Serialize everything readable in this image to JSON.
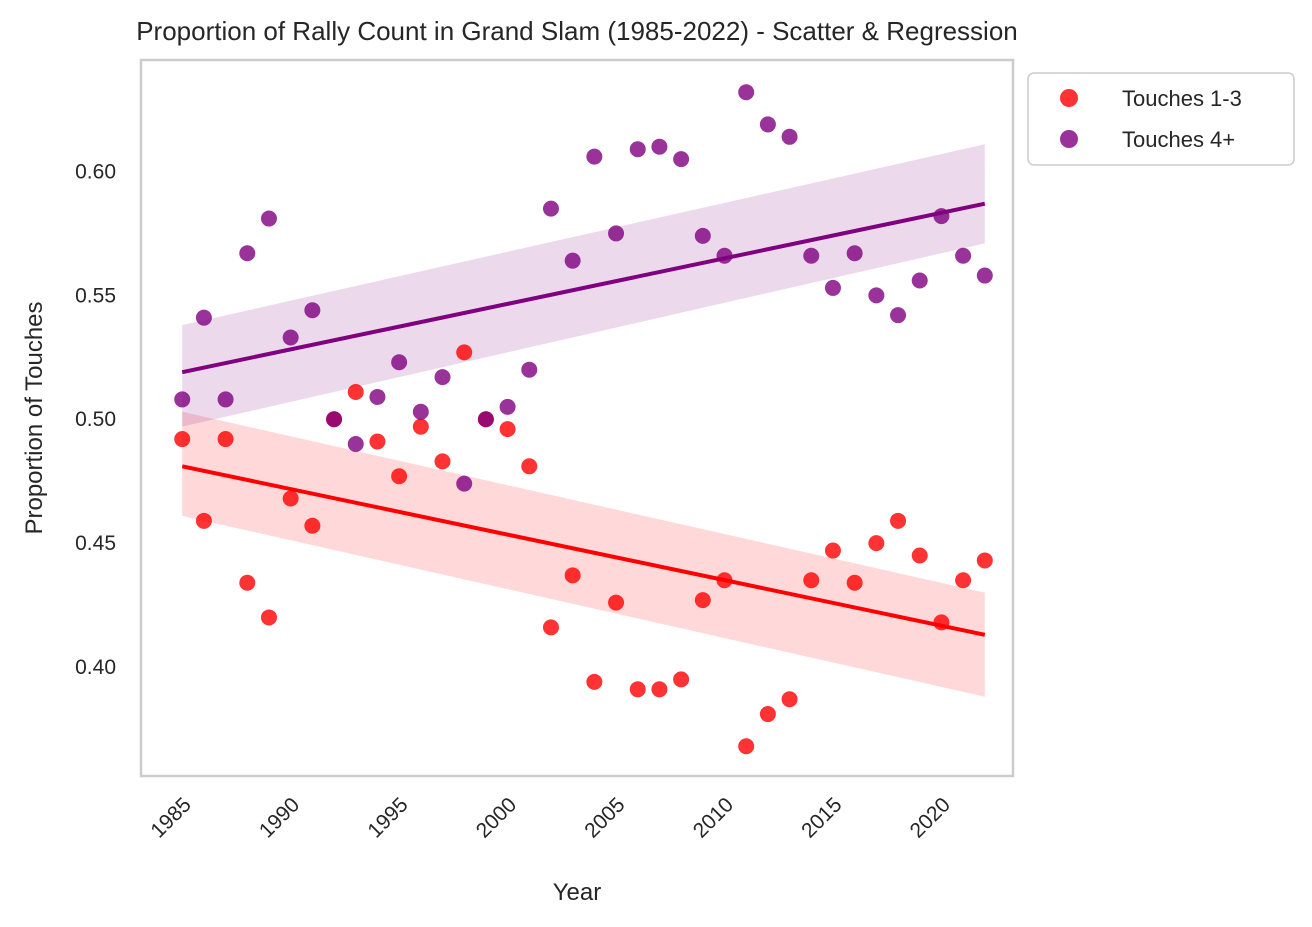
{
  "chart_data": {
    "type": "scatter",
    "title": "Proportion of Rally Count in Grand Slam (1985-2022) - Scatter & Regression",
    "xlabel": "Year",
    "ylabel": "Proportion of Touches",
    "xlim": [
      1983.1,
      2023.3
    ],
    "ylim": [
      0.356,
      0.645
    ],
    "xticks": [
      "1985",
      "1990",
      "1995",
      "2000",
      "2005",
      "2010",
      "2015",
      "2020"
    ],
    "yticks": [
      "0.40",
      "0.45",
      "0.50",
      "0.55",
      "0.60"
    ],
    "grid": false,
    "legend_position": "outside-top-right",
    "x": [
      1985,
      1986,
      1987,
      1988,
      1989,
      1990,
      1991,
      1992,
      1993,
      1994,
      1995,
      1996,
      1997,
      1998,
      1999,
      2000,
      2001,
      2002,
      2003,
      2004,
      2005,
      2006,
      2007,
      2008,
      2009,
      2010,
      2011,
      2012,
      2013,
      2014,
      2015,
      2016,
      2017,
      2018,
      2019,
      2020,
      2021,
      2022
    ],
    "series": [
      {
        "name": "Touches 1-3",
        "color": "#ff0000",
        "values": [
          0.492,
          0.459,
          0.492,
          0.434,
          0.42,
          0.468,
          0.457,
          0.5,
          0.511,
          0.491,
          0.477,
          0.497,
          0.483,
          0.527,
          0.5,
          0.496,
          0.481,
          0.416,
          0.437,
          0.394,
          0.426,
          0.391,
          0.391,
          0.395,
          0.427,
          0.435,
          0.368,
          0.381,
          0.387,
          0.435,
          0.447,
          0.434,
          0.45,
          0.459,
          0.445,
          0.418,
          0.435,
          0.443
        ],
        "regression": {
          "start": [
            1985,
            0.481
          ],
          "end": [
            2022,
            0.413
          ],
          "ci_start": [
            0.461,
            0.503
          ],
          "ci_end": [
            0.388,
            0.43
          ]
        }
      },
      {
        "name": "Touches 4+",
        "color": "#800080",
        "values": [
          0.508,
          0.541,
          0.508,
          0.567,
          0.581,
          0.533,
          0.544,
          0.5,
          0.49,
          0.509,
          0.523,
          0.503,
          0.517,
          0.474,
          0.5,
          0.505,
          0.52,
          0.585,
          0.564,
          0.606,
          0.575,
          0.609,
          0.61,
          0.605,
          0.574,
          0.566,
          0.632,
          0.619,
          0.614,
          0.566,
          0.553,
          0.567,
          0.55,
          0.542,
          0.556,
          0.582,
          0.566,
          0.558
        ],
        "regression": {
          "start": [
            1985,
            0.519
          ],
          "end": [
            2022,
            0.587
          ],
          "ci_start": [
            0.497,
            0.538
          ],
          "ci_end": [
            0.571,
            0.611
          ]
        }
      }
    ]
  }
}
